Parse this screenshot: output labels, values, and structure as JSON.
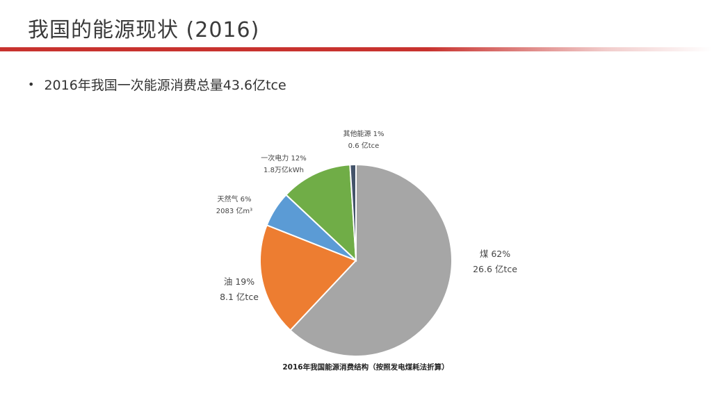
{
  "slide": {
    "title": "我国的能源现状 (2016)",
    "bullet": "2016年我国一次能源消费总量43.6亿tce",
    "accent_color": "#c8322e"
  },
  "chart_data": {
    "type": "pie",
    "title": "2016年我国能源消费结构（按照发电煤耗法折算）",
    "slices": [
      {
        "key": "coal",
        "label": "煤 62%",
        "sub": "26.6 亿tce",
        "percent": 62,
        "color": "#a6a6a6"
      },
      {
        "key": "oil",
        "label": "油 19%",
        "sub": "8.1 亿tce",
        "percent": 19,
        "color": "#ed7d31"
      },
      {
        "key": "gas",
        "label": "天然气 6%",
        "sub": "2083 亿m³",
        "percent": 6,
        "color": "#5b9bd5"
      },
      {
        "key": "power",
        "label": "一次电力 12%",
        "sub": "1.8万亿kWh",
        "percent": 12,
        "color": "#70ad47"
      },
      {
        "key": "other",
        "label": "其他能源 1%",
        "sub": "0.6 亿tce",
        "percent": 1,
        "color": "#44546a"
      }
    ]
  }
}
